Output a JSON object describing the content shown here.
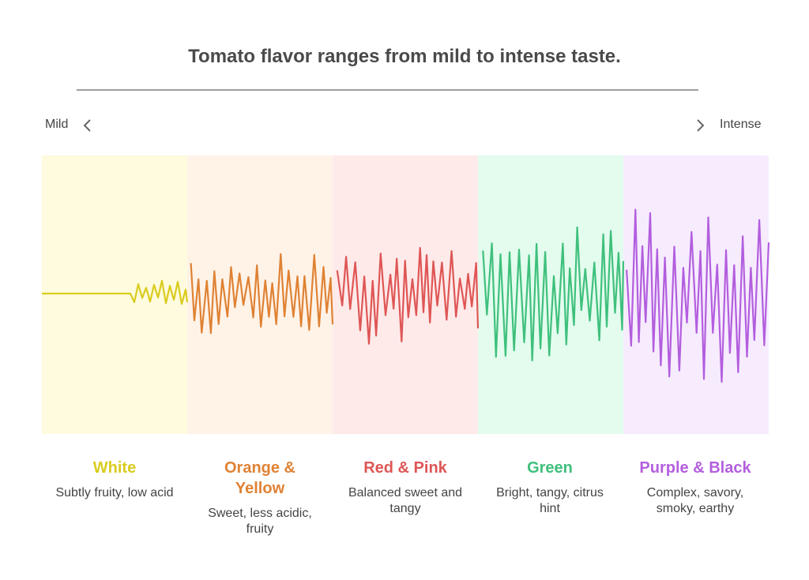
{
  "title": "Tomato flavor ranges from mild to intense taste.",
  "scale": {
    "left_label": "Mild",
    "right_label": "Intense"
  },
  "categories": [
    {
      "name": "White",
      "desc": "Subtly fruity, low acid",
      "color": "#d9cc1e",
      "bg": "#fefbde",
      "intensity": 0.2
    },
    {
      "name": "Orange & Yellow",
      "desc": "Sweet, less acidic, fruity",
      "color": "#df8234",
      "bg": "#fff3e8",
      "intensity": 0.45
    },
    {
      "name": "Red & Pink",
      "desc": "Balanced sweet and tangy",
      "color": "#de5655",
      "bg": "#ffeaea",
      "intensity": 0.6
    },
    {
      "name": "Green",
      "desc": "Bright, tangy, citrus hint",
      "color": "#3fc07c",
      "bg": "#e3fcee",
      "intensity": 0.75
    },
    {
      "name": "Purple & Black",
      "desc": "Complex, savory, smoky, earthy",
      "color": "#b35ede",
      "bg": "#f6ecfe",
      "intensity": 1.0
    }
  ]
}
